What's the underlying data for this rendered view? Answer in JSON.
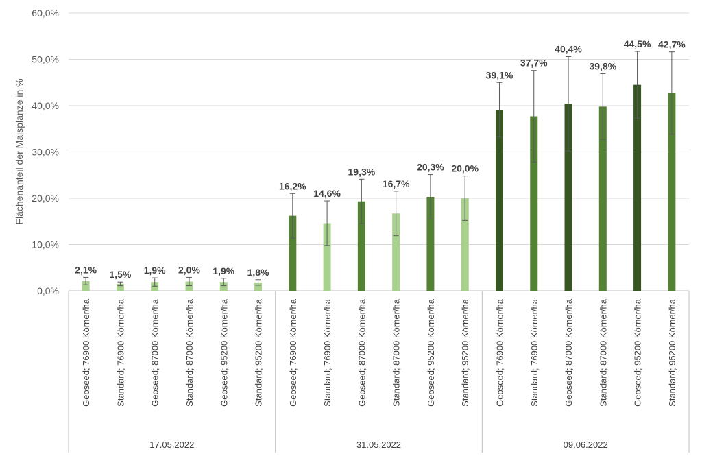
{
  "chart_data": {
    "type": "bar",
    "ylabel": "Flächenanteil der Maisplanze in %",
    "ylim": [
      0,
      60
    ],
    "yticks": [
      "0,0%",
      "10,0%",
      "20,0%",
      "30,0%",
      "40,0%",
      "50,0%",
      "60,0%"
    ],
    "grid": true,
    "colors": {
      "geoseed_17": "#a9d18e",
      "standard_17": "#a9d18e",
      "geoseed_31": "#548235",
      "standard_31": "#a9d18e",
      "geoseed_09": "#375623",
      "standard_09": "#548235"
    },
    "groups": [
      {
        "label": "17.05.2022",
        "bars": [
          {
            "category": "Geoseed; 76900 Körner/ha",
            "value": 2.1,
            "label": "2,1%",
            "err_low": 1.3,
            "err_high": 2.9,
            "color_key": "geoseed_17"
          },
          {
            "category": "Standard; 76900 Körner/ha",
            "value": 1.5,
            "label": "1,5%",
            "err_low": 1.1,
            "err_high": 1.9,
            "color_key": "standard_17"
          },
          {
            "category": "Geoseed; 87000 Körner/ha",
            "value": 1.9,
            "label": "1,9%",
            "err_low": 1.0,
            "err_high": 2.8,
            "color_key": "geoseed_17"
          },
          {
            "category": "Standard; 87000 Körner/ha",
            "value": 2.0,
            "label": "2,0%",
            "err_low": 1.1,
            "err_high": 2.9,
            "color_key": "standard_17"
          },
          {
            "category": "Geoseed; 95200 Körner/ha",
            "value": 1.9,
            "label": "1,9%",
            "err_low": 1.1,
            "err_high": 2.7,
            "color_key": "geoseed_17"
          },
          {
            "category": "Standard; 95200 Körner/ha",
            "value": 1.8,
            "label": "1,8%",
            "err_low": 1.2,
            "err_high": 2.4,
            "color_key": "standard_17"
          }
        ]
      },
      {
        "label": "31.05.2022",
        "bars": [
          {
            "category": "Geoseed; 76900 Körner/ha",
            "value": 16.2,
            "label": "16,2%",
            "err_low": 11.4,
            "err_high": 21.0,
            "color_key": "geoseed_31"
          },
          {
            "category": "Standard; 76900 Körner/ha",
            "value": 14.6,
            "label": "14,6%",
            "err_low": 9.8,
            "err_high": 19.4,
            "color_key": "standard_31"
          },
          {
            "category": "Geoseed; 87000 Körner/ha",
            "value": 19.3,
            "label": "19,3%",
            "err_low": 14.5,
            "err_high": 24.1,
            "color_key": "geoseed_31"
          },
          {
            "category": "Standard; 87000 Körner/ha",
            "value": 16.7,
            "label": "16,7%",
            "err_low": 11.9,
            "err_high": 21.5,
            "color_key": "standard_31"
          },
          {
            "category": "Geoseed; 95200 Körner/ha",
            "value": 20.3,
            "label": "20,3%",
            "err_low": 15.5,
            "err_high": 25.1,
            "color_key": "geoseed_31"
          },
          {
            "category": "Standard; 95200 Körner/ha",
            "value": 20.0,
            "label": "20,0%",
            "err_low": 15.2,
            "err_high": 24.8,
            "color_key": "standard_31"
          }
        ]
      },
      {
        "label": "09.06.2022",
        "bars": [
          {
            "category": "Geoseed; 76900 Körner/ha",
            "value": 39.1,
            "label": "39,1%",
            "err_low": 33.2,
            "err_high": 45.0,
            "color_key": "geoseed_09"
          },
          {
            "category": "Standard; 76900 Körner/ha",
            "value": 37.7,
            "label": "37,7%",
            "err_low": 27.8,
            "err_high": 47.6,
            "color_key": "standard_09"
          },
          {
            "category": "Geoseed; 87000 Körner/ha",
            "value": 40.4,
            "label": "40,4%",
            "err_low": 30.2,
            "err_high": 50.6,
            "color_key": "geoseed_09"
          },
          {
            "category": "Standard; 87000 Körner/ha",
            "value": 39.8,
            "label": "39,8%",
            "err_low": 32.7,
            "err_high": 46.9,
            "color_key": "standard_09"
          },
          {
            "category": "Geoseed; 95200 Körner/ha",
            "value": 44.5,
            "label": "44,5%",
            "err_low": 37.3,
            "err_high": 51.7,
            "color_key": "geoseed_09"
          },
          {
            "category": "Standard; 95200 Körner/ha",
            "value": 42.7,
            "label": "42,7%",
            "err_low": 33.8,
            "err_high": 51.6,
            "color_key": "standard_09"
          }
        ]
      }
    ]
  }
}
